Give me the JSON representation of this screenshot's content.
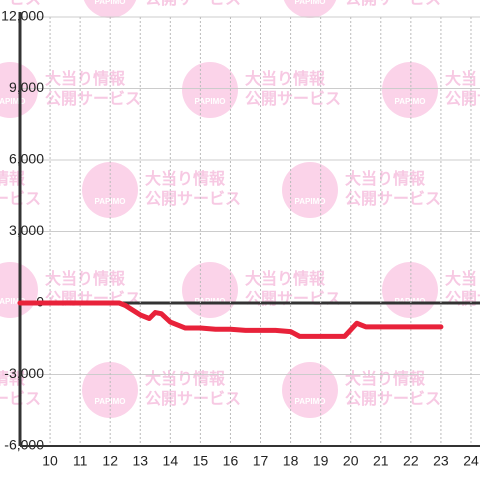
{
  "chart_data": {
    "type": "line",
    "x": [
      9,
      12.3,
      12.5,
      13,
      13.3,
      13.5,
      13.7,
      14,
      14.5,
      15,
      15.5,
      16,
      16.5,
      17.5,
      18,
      18.3,
      19,
      19.8,
      20.2,
      20.5,
      23
    ],
    "series": [
      {
        "color": "#e8223a",
        "values": [
          0,
          0,
          -100,
          -500,
          -650,
          -400,
          -450,
          -800,
          -1050,
          -1050,
          -1100,
          -1100,
          -1150,
          -1150,
          -1200,
          -1400,
          -1400,
          -1400,
          -850,
          -1000,
          -1000
        ]
      }
    ],
    "xlim": [
      9,
      24.3
    ],
    "xticks": [
      10,
      11,
      12,
      13,
      14,
      15,
      16,
      17,
      18,
      19,
      20,
      21,
      22,
      23,
      24
    ],
    "ylim": [
      -6000,
      12000
    ],
    "yticks": [
      {
        "value": -6000,
        "label": "-6,000"
      },
      {
        "value": -3000,
        "label": "-3,000"
      },
      0,
      {
        "value": 3000,
        "label": "3,000"
      },
      {
        "value": 6000,
        "label": "6,000"
      },
      {
        "value": 9000,
        "label": "9,000"
      },
      {
        "value": 12000,
        "label": "12,000"
      }
    ],
    "grid": true,
    "watermark": {
      "brand": "PAPIMO",
      "line1": "大当り情報",
      "line2": "公開サービス"
    }
  }
}
